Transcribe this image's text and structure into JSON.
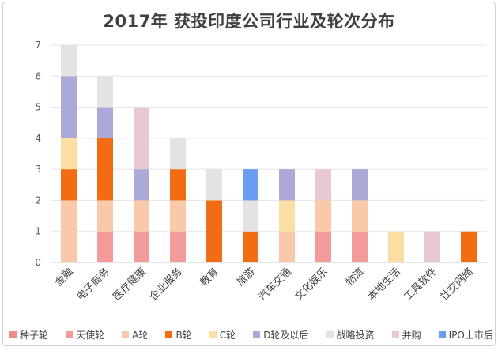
{
  "chart_data": {
    "type": "bar",
    "stacked": true,
    "title": "2017年 获投印度公司行业及轮次分布",
    "categories": [
      "金融",
      "电子商务",
      "医疗健康",
      "企业服务",
      "教育",
      "旅游",
      "汽车交通",
      "文化娱乐",
      "物流",
      "本地生活",
      "工具软件",
      "社交网络"
    ],
    "ylim": [
      0,
      7
    ],
    "yticks": [
      "0",
      "1",
      "2",
      "3",
      "4",
      "5",
      "6",
      "7"
    ],
    "grid": true,
    "legend_position": "bottom",
    "series": [
      {
        "name": "种子轮",
        "color": "#f08c8c",
        "values": [
          0,
          0,
          0,
          0,
          0,
          0,
          0,
          0,
          0,
          0,
          0,
          0
        ]
      },
      {
        "name": "天使轮",
        "color": "#f39a9a",
        "values": [
          0,
          1,
          1,
          1,
          0,
          0,
          0,
          1,
          1,
          0,
          0,
          0
        ]
      },
      {
        "name": "A轮",
        "color": "#f9c9aa",
        "values": [
          2,
          1,
          1,
          1,
          0,
          0,
          1,
          1,
          1,
          0,
          0,
          0
        ]
      },
      {
        "name": "B轮",
        "color": "#f26c14",
        "values": [
          1,
          2,
          0,
          1,
          2,
          1,
          0,
          0,
          0,
          0,
          0,
          1
        ]
      },
      {
        "name": "C轮",
        "color": "#fcdfa4",
        "values": [
          1,
          0,
          0,
          0,
          0,
          0,
          1,
          0,
          0,
          1,
          0,
          0
        ]
      },
      {
        "name": "D轮及以后",
        "color": "#aaa9d8",
        "values": [
          2,
          1,
          1,
          0,
          0,
          0,
          1,
          0,
          1,
          0,
          0,
          0
        ]
      },
      {
        "name": "战略投资",
        "color": "#e3e3e3",
        "values": [
          1,
          1,
          0,
          1,
          1,
          1,
          0,
          0,
          0,
          0,
          0,
          0
        ]
      },
      {
        "name": "并购",
        "color": "#e8c8d4",
        "values": [
          0,
          0,
          2,
          0,
          0,
          0,
          0,
          1,
          0,
          0,
          1,
          0
        ]
      },
      {
        "name": "IPO上市后",
        "color": "#6a9df0",
        "values": [
          0,
          0,
          0,
          0,
          0,
          1,
          0,
          0,
          0,
          0,
          0,
          0
        ]
      }
    ]
  }
}
